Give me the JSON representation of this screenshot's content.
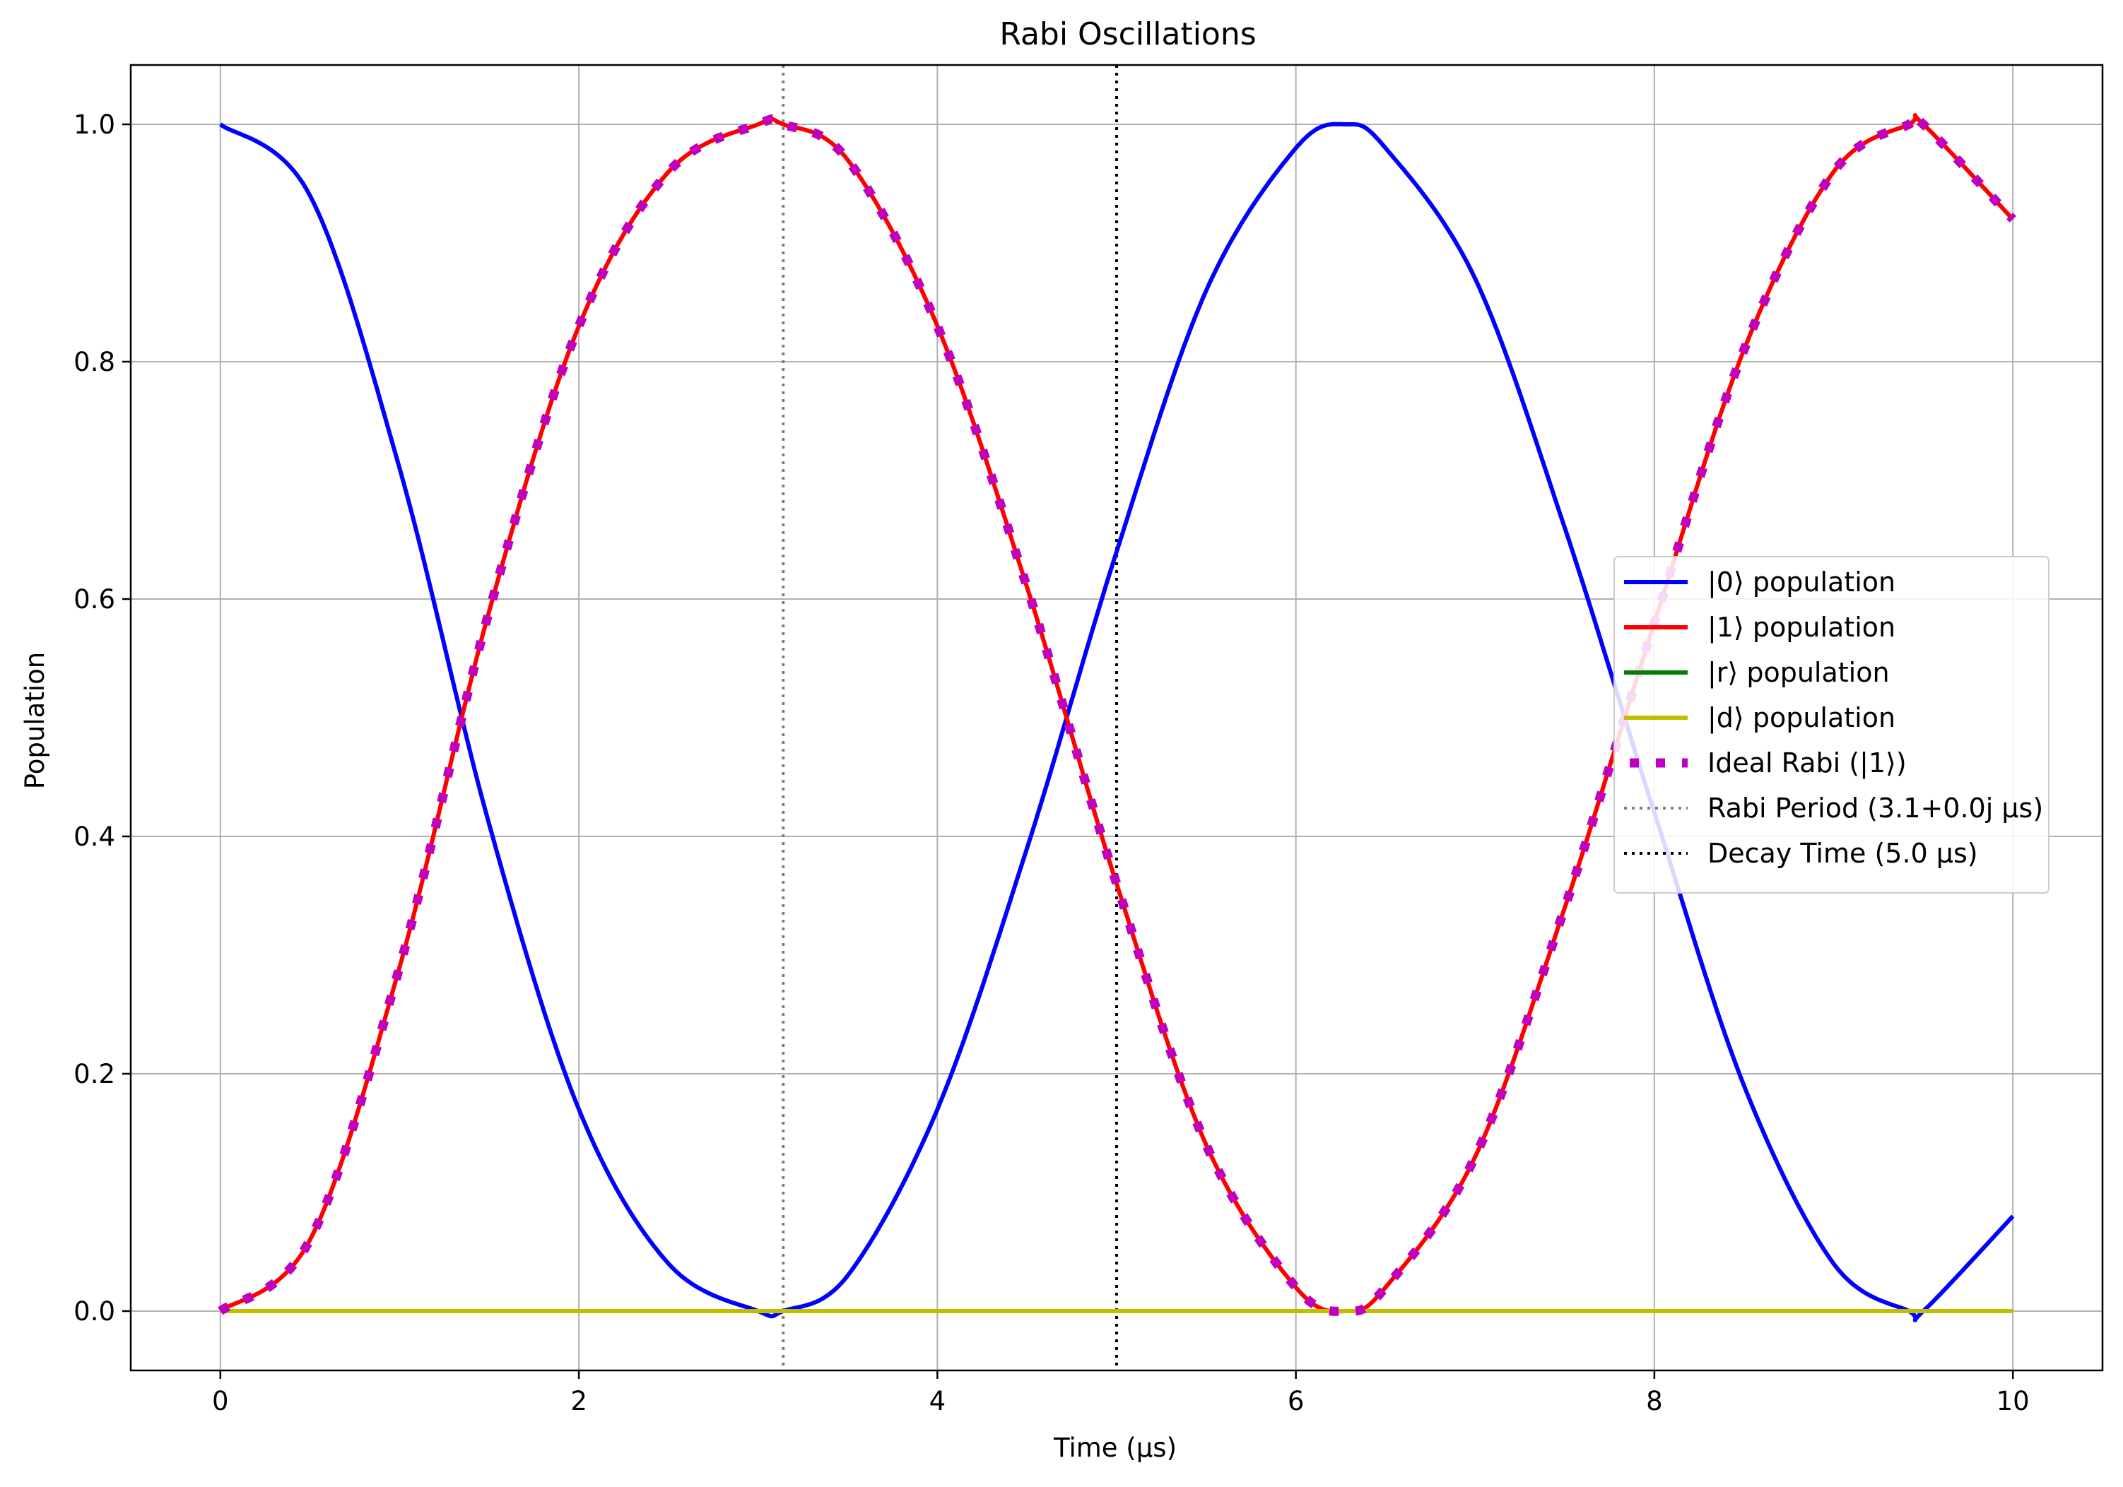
{
  "chart_data": {
    "type": "line",
    "title": "Rabi Oscillations",
    "xlabel": "Time (µs)",
    "ylabel": "Population",
    "xlim": [
      -0.5,
      10.5
    ],
    "ylim": [
      -0.05,
      1.05
    ],
    "xticks": [
      0,
      2,
      4,
      6,
      8,
      10
    ],
    "xtick_labels": [
      "0",
      "2",
      "4",
      "6",
      "8",
      "10"
    ],
    "yticks": [
      0.0,
      0.2,
      0.4,
      0.6,
      0.8,
      1.0
    ],
    "ytick_labels": [
      "0.0",
      "0.2",
      "0.4",
      "0.6",
      "0.8",
      "1.0"
    ],
    "grid": true,
    "legend_position": "center-right",
    "series": [
      {
        "name": "|0⟩ population",
        "color": "#0000ff",
        "style": "solid",
        "x": [
          0.0,
          0.5,
          1.0,
          1.5,
          2.0,
          2.5,
          3.0,
          3.14,
          3.5,
          4.0,
          4.5,
          5.0,
          5.5,
          6.0,
          6.28,
          6.5,
          7.0,
          7.5,
          8.0,
          8.5,
          9.0,
          9.42,
          9.5,
          10.0
        ],
        "y": [
          1.0,
          0.94,
          0.71,
          0.41,
          0.17,
          0.04,
          0.0,
          0.0,
          0.03,
          0.17,
          0.39,
          0.64,
          0.86,
          0.98,
          1.0,
          0.98,
          0.87,
          0.66,
          0.42,
          0.19,
          0.04,
          0.0,
          0.0,
          0.08
        ]
      },
      {
        "name": "|1⟩ population",
        "color": "#ff0000",
        "style": "solid",
        "x": [
          0.0,
          0.5,
          1.0,
          1.5,
          2.0,
          2.5,
          3.0,
          3.14,
          3.5,
          4.0,
          4.5,
          5.0,
          5.5,
          6.0,
          6.28,
          6.5,
          7.0,
          7.5,
          8.0,
          8.5,
          9.0,
          9.42,
          9.5,
          10.0
        ],
        "y": [
          0.0,
          0.06,
          0.29,
          0.59,
          0.83,
          0.96,
          1.0,
          1.0,
          0.97,
          0.83,
          0.61,
          0.36,
          0.14,
          0.02,
          0.0,
          0.02,
          0.13,
          0.34,
          0.58,
          0.81,
          0.96,
          1.0,
          1.0,
          0.92
        ]
      },
      {
        "name": "|r⟩ population",
        "color": "#008000",
        "style": "solid",
        "x": [
          0.0,
          10.0
        ],
        "y": [
          0.0,
          0.0
        ]
      },
      {
        "name": "|d⟩ population",
        "color": "#bfbf00",
        "style": "solid",
        "x": [
          0.0,
          10.0
        ],
        "y": [
          0.0,
          0.0
        ]
      },
      {
        "name": "Ideal Rabi (|1⟩)",
        "color": "#bf00bf",
        "style": "dotted-square",
        "x": [
          0.0,
          0.5,
          1.0,
          1.5,
          2.0,
          2.5,
          3.0,
          3.14,
          3.5,
          4.0,
          4.5,
          5.0,
          5.5,
          6.0,
          6.28,
          6.5,
          7.0,
          7.5,
          8.0,
          8.5,
          9.0,
          9.42,
          9.5,
          10.0
        ],
        "y": [
          0.0,
          0.06,
          0.29,
          0.59,
          0.83,
          0.96,
          1.0,
          1.0,
          0.97,
          0.83,
          0.61,
          0.36,
          0.14,
          0.02,
          0.0,
          0.02,
          0.13,
          0.34,
          0.58,
          0.81,
          0.96,
          1.0,
          1.0,
          0.92
        ]
      }
    ],
    "vlines": [
      {
        "name": "Rabi Period (3.1+0.0j µs)",
        "x": 3.14,
        "color": "#808080",
        "style": "dotted"
      },
      {
        "name": "Decay Time (5.0 µs)",
        "x": 5.0,
        "color": "#000000",
        "style": "dotted"
      }
    ]
  }
}
